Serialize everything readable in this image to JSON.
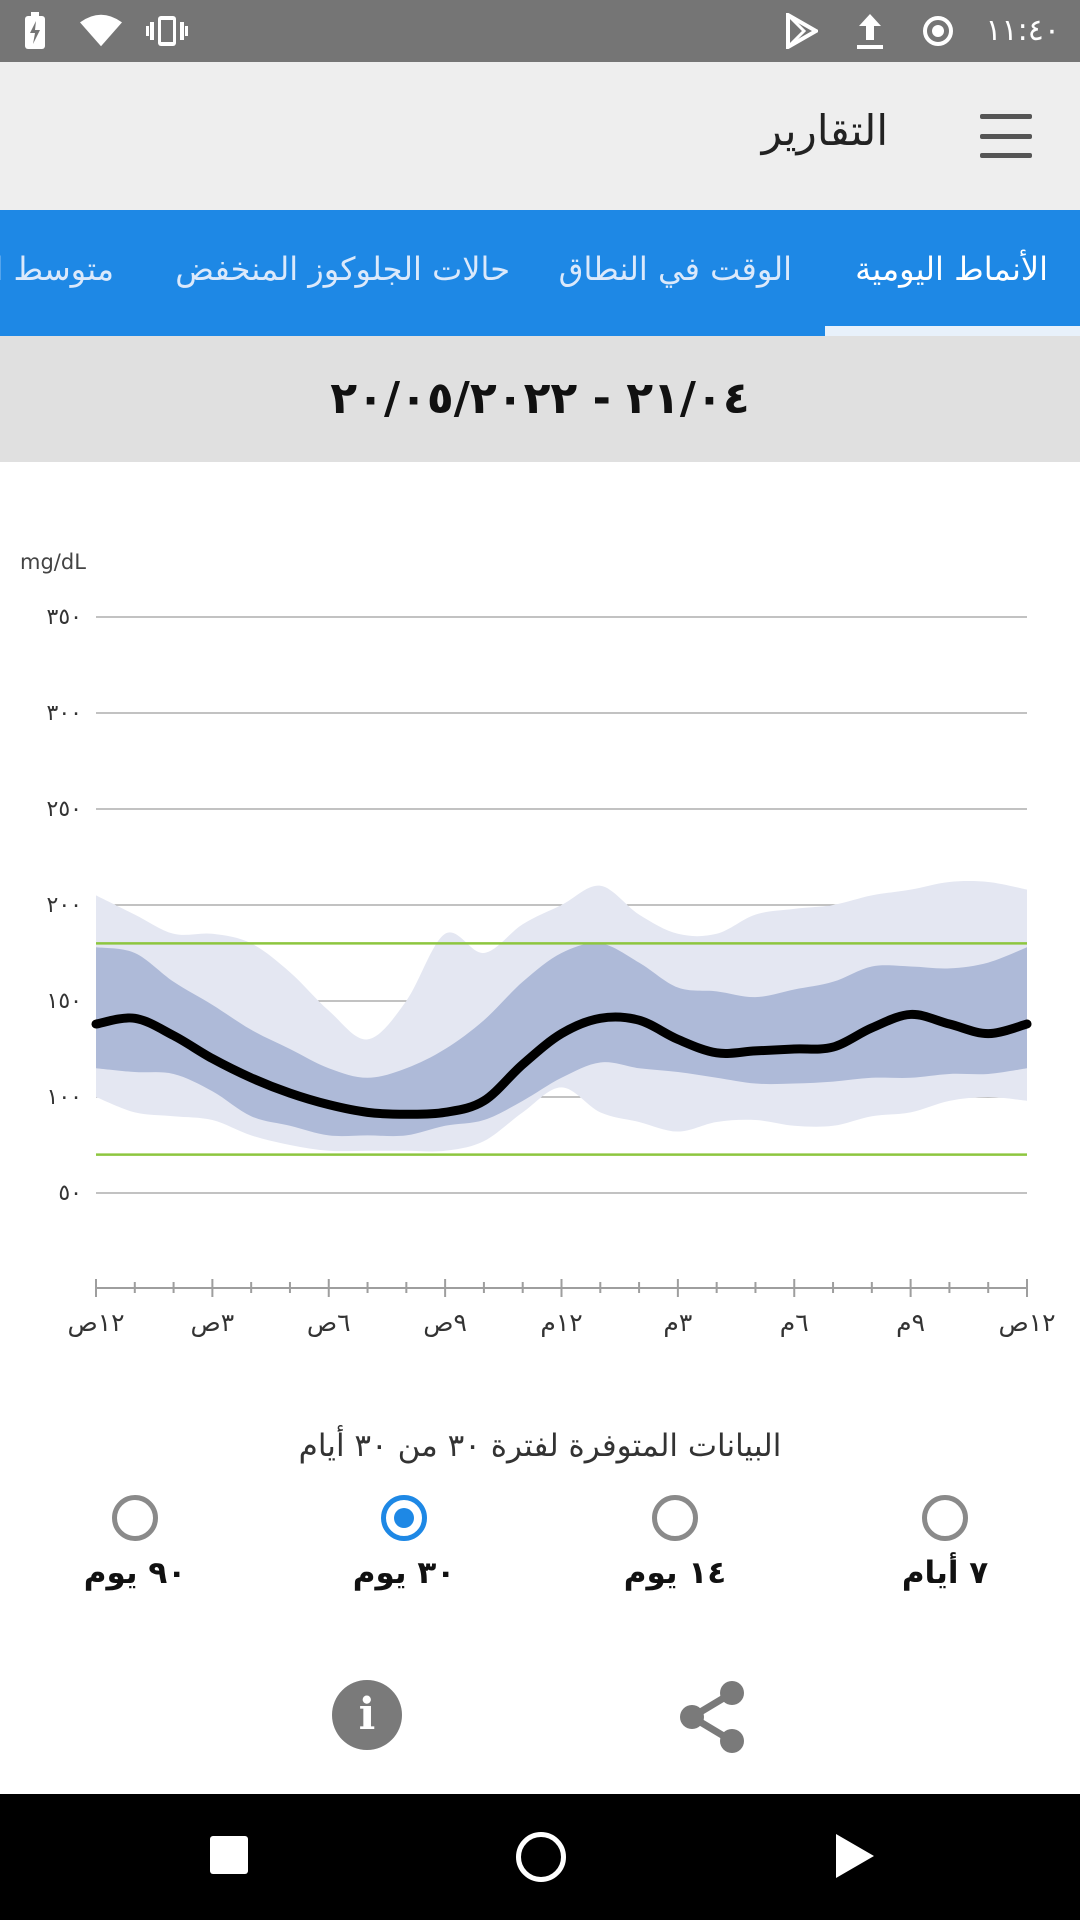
{
  "status_bar": {
    "time": "١١:٤٠",
    "left_icons": [
      "battery-charging-icon",
      "wifi-icon",
      "vibrate-icon"
    ],
    "right_icons": [
      "play-store-icon",
      "upload-icon",
      "record-icon"
    ]
  },
  "app_bar": {
    "title": "التقارير",
    "menu_icon": "hamburger-menu-icon"
  },
  "tabs": [
    {
      "label": "الأنماط اليومية",
      "active": true
    },
    {
      "label": "الوقت في النطاق",
      "active": false
    },
    {
      "label": "حالات الجلوكوز المنخفض",
      "active": false
    },
    {
      "label": "متوسط ال",
      "active": false
    }
  ],
  "date_range": "٢١/٠٤ - ٢٠/٠٥/٢٠٢٢",
  "colors": {
    "accent": "#1e88e5",
    "target_line": "#8dc63f",
    "band_outer": "#e4e7f2",
    "band_inner": "#aebad8",
    "median_line": "#000000"
  },
  "chart_data": {
    "type": "area",
    "ylabel": "mg/dL",
    "yticks": [
      {
        "value": 350,
        "label": "٣٥٠"
      },
      {
        "value": 300,
        "label": "٣٠٠"
      },
      {
        "value": 250,
        "label": "٢٥٠"
      },
      {
        "value": 200,
        "label": "٢٠٠"
      },
      {
        "value": 150,
        "label": "١٥٠"
      },
      {
        "value": 100,
        "label": "١٠٠"
      },
      {
        "value": 50,
        "label": "٥٠"
      }
    ],
    "ylim": [
      0,
      350
    ],
    "xlim": [
      0,
      24
    ],
    "xticks": [
      {
        "value": 0,
        "label": "١٢ص"
      },
      {
        "value": 3,
        "label": "٣ص"
      },
      {
        "value": 6,
        "label": "٦ص"
      },
      {
        "value": 9,
        "label": "٩ص"
      },
      {
        "value": 12,
        "label": "١٢م"
      },
      {
        "value": 15,
        "label": "٣م"
      },
      {
        "value": 18,
        "label": "٦م"
      },
      {
        "value": 21,
        "label": "٩م"
      },
      {
        "value": 24,
        "label": "١٢ص"
      }
    ],
    "target_range": [
      70,
      180
    ],
    "hours": [
      0,
      1,
      2,
      3,
      4,
      5,
      6,
      7,
      8,
      9,
      10,
      11,
      12,
      13,
      14,
      15,
      16,
      17,
      18,
      19,
      20,
      21,
      22,
      23,
      24
    ],
    "p90": [
      205,
      195,
      185,
      185,
      180,
      165,
      145,
      130,
      150,
      185,
      175,
      190,
      200,
      210,
      195,
      185,
      185,
      195,
      198,
      200,
      205,
      208,
      212,
      212,
      208
    ],
    "p75": [
      178,
      175,
      160,
      148,
      135,
      125,
      115,
      110,
      115,
      125,
      140,
      160,
      175,
      180,
      170,
      157,
      155,
      152,
      156,
      160,
      168,
      168,
      167,
      170,
      178
    ],
    "median": [
      138,
      141,
      132,
      120,
      110,
      102,
      96,
      92,
      91,
      92,
      98,
      117,
      133,
      141,
      140,
      130,
      123,
      124,
      125,
      126,
      136,
      143,
      138,
      133,
      138
    ],
    "p25": [
      115,
      113,
      112,
      103,
      90,
      85,
      80,
      80,
      80,
      85,
      88,
      98,
      110,
      118,
      115,
      113,
      110,
      107,
      107,
      108,
      110,
      110,
      112,
      112,
      115
    ],
    "p10": [
      100,
      92,
      90,
      88,
      80,
      75,
      72,
      72,
      72,
      72,
      77,
      92,
      105,
      92,
      87,
      82,
      87,
      88,
      85,
      85,
      90,
      92,
      98,
      100,
      98
    ]
  },
  "availability_text": "البيانات المتوفرة لفترة ٣٠ من ٣٠ أيام",
  "period_options": [
    {
      "label": "٧ أيام",
      "selected": false
    },
    {
      "label": "١٤ يوم",
      "selected": false
    },
    {
      "label": "٣٠ يوم",
      "selected": true
    },
    {
      "label": "٩٠ يوم",
      "selected": false
    }
  ],
  "actions": {
    "info_symbol": "i",
    "share_icon": "share-icon"
  },
  "nav_bar": [
    "recents-square-icon",
    "home-circle-icon",
    "back-triangle-icon"
  ]
}
